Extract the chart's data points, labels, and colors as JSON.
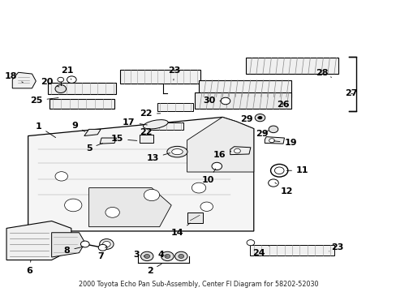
{
  "title": "2000 Toyota Echo Pan Sub-Assembly, Center Fl Diagram for 58202-52030",
  "bg_color": "#ffffff",
  "fig_width": 4.89,
  "fig_height": 3.6,
  "dpi": 100,
  "line_color": "#000000",
  "part_fontsize": 8,
  "parts_labels": {
    "1": [
      0.105,
      0.565,
      0.155,
      0.515,
      "right",
      "center"
    ],
    "2": [
      0.375,
      0.088,
      0.415,
      0.108,
      "center",
      "top"
    ],
    "3": [
      0.355,
      0.13,
      0.365,
      0.108,
      "right",
      "top"
    ],
    "4": [
      0.395,
      0.13,
      0.425,
      0.108,
      "left",
      "top"
    ],
    "5": [
      0.235,
      0.495,
      0.255,
      0.515,
      "right",
      "center"
    ],
    "6": [
      0.072,
      0.082,
      0.075,
      0.115,
      "center",
      "top"
    ],
    "7": [
      0.265,
      0.13,
      0.27,
      0.155,
      "right",
      "top"
    ],
    "8": [
      0.175,
      0.14,
      0.2,
      0.152,
      "right",
      "center"
    ],
    "9": [
      0.195,
      0.565,
      0.215,
      0.545,
      "right",
      "center"
    ],
    "10": [
      0.545,
      0.39,
      0.545,
      0.42,
      "right",
      "top"
    ],
    "11": [
      0.75,
      0.415,
      0.715,
      0.415,
      "left",
      "center"
    ],
    "12": [
      0.71,
      0.36,
      0.695,
      0.375,
      "left",
      "top"
    ],
    "13": [
      0.4,
      0.46,
      0.435,
      0.48,
      "right",
      "center"
    ],
    "14": [
      0.465,
      0.215,
      0.49,
      0.24,
      "right",
      "top"
    ],
    "15": [
      0.31,
      0.52,
      0.345,
      0.518,
      "right",
      "center"
    ],
    "16": [
      0.57,
      0.465,
      0.59,
      0.48,
      "right",
      "center"
    ],
    "17": [
      0.34,
      0.58,
      0.375,
      0.572,
      "right",
      "center"
    ],
    "18": [
      0.04,
      0.74,
      0.055,
      0.72,
      "right",
      "center"
    ],
    "19": [
      0.72,
      0.51,
      0.69,
      0.515,
      "left",
      "center"
    ],
    "20": [
      0.13,
      0.72,
      0.145,
      0.705,
      "right",
      "center"
    ],
    "21": [
      0.165,
      0.745,
      0.158,
      0.724,
      "center",
      "bottom"
    ],
    "22a": [
      0.385,
      0.61,
      0.415,
      0.612,
      "right",
      "center"
    ],
    "22b": [
      0.385,
      0.545,
      0.41,
      0.555,
      "right",
      "center"
    ],
    "23a": [
      0.44,
      0.745,
      0.445,
      0.72,
      "center",
      "bottom"
    ],
    "23b": [
      0.84,
      0.15,
      0.835,
      0.135,
      "left",
      "center"
    ],
    "24": [
      0.655,
      0.145,
      0.685,
      0.155,
      "center",
      "top"
    ],
    "25": [
      0.105,
      0.66,
      0.15,
      0.67,
      "right",
      "center"
    ],
    "26": [
      0.7,
      0.64,
      0.72,
      0.648,
      "left",
      "center"
    ],
    "27": [
      0.875,
      0.68,
      0.895,
      0.68,
      "left",
      "center"
    ],
    "28": [
      0.8,
      0.75,
      0.84,
      0.735,
      "left",
      "center"
    ],
    "29a": [
      0.64,
      0.59,
      0.66,
      0.598,
      "right",
      "center"
    ],
    "29b": [
      0.68,
      0.54,
      0.68,
      0.555,
      "right",
      "center"
    ],
    "30": [
      0.545,
      0.655,
      0.565,
      0.655,
      "right",
      "center"
    ]
  }
}
